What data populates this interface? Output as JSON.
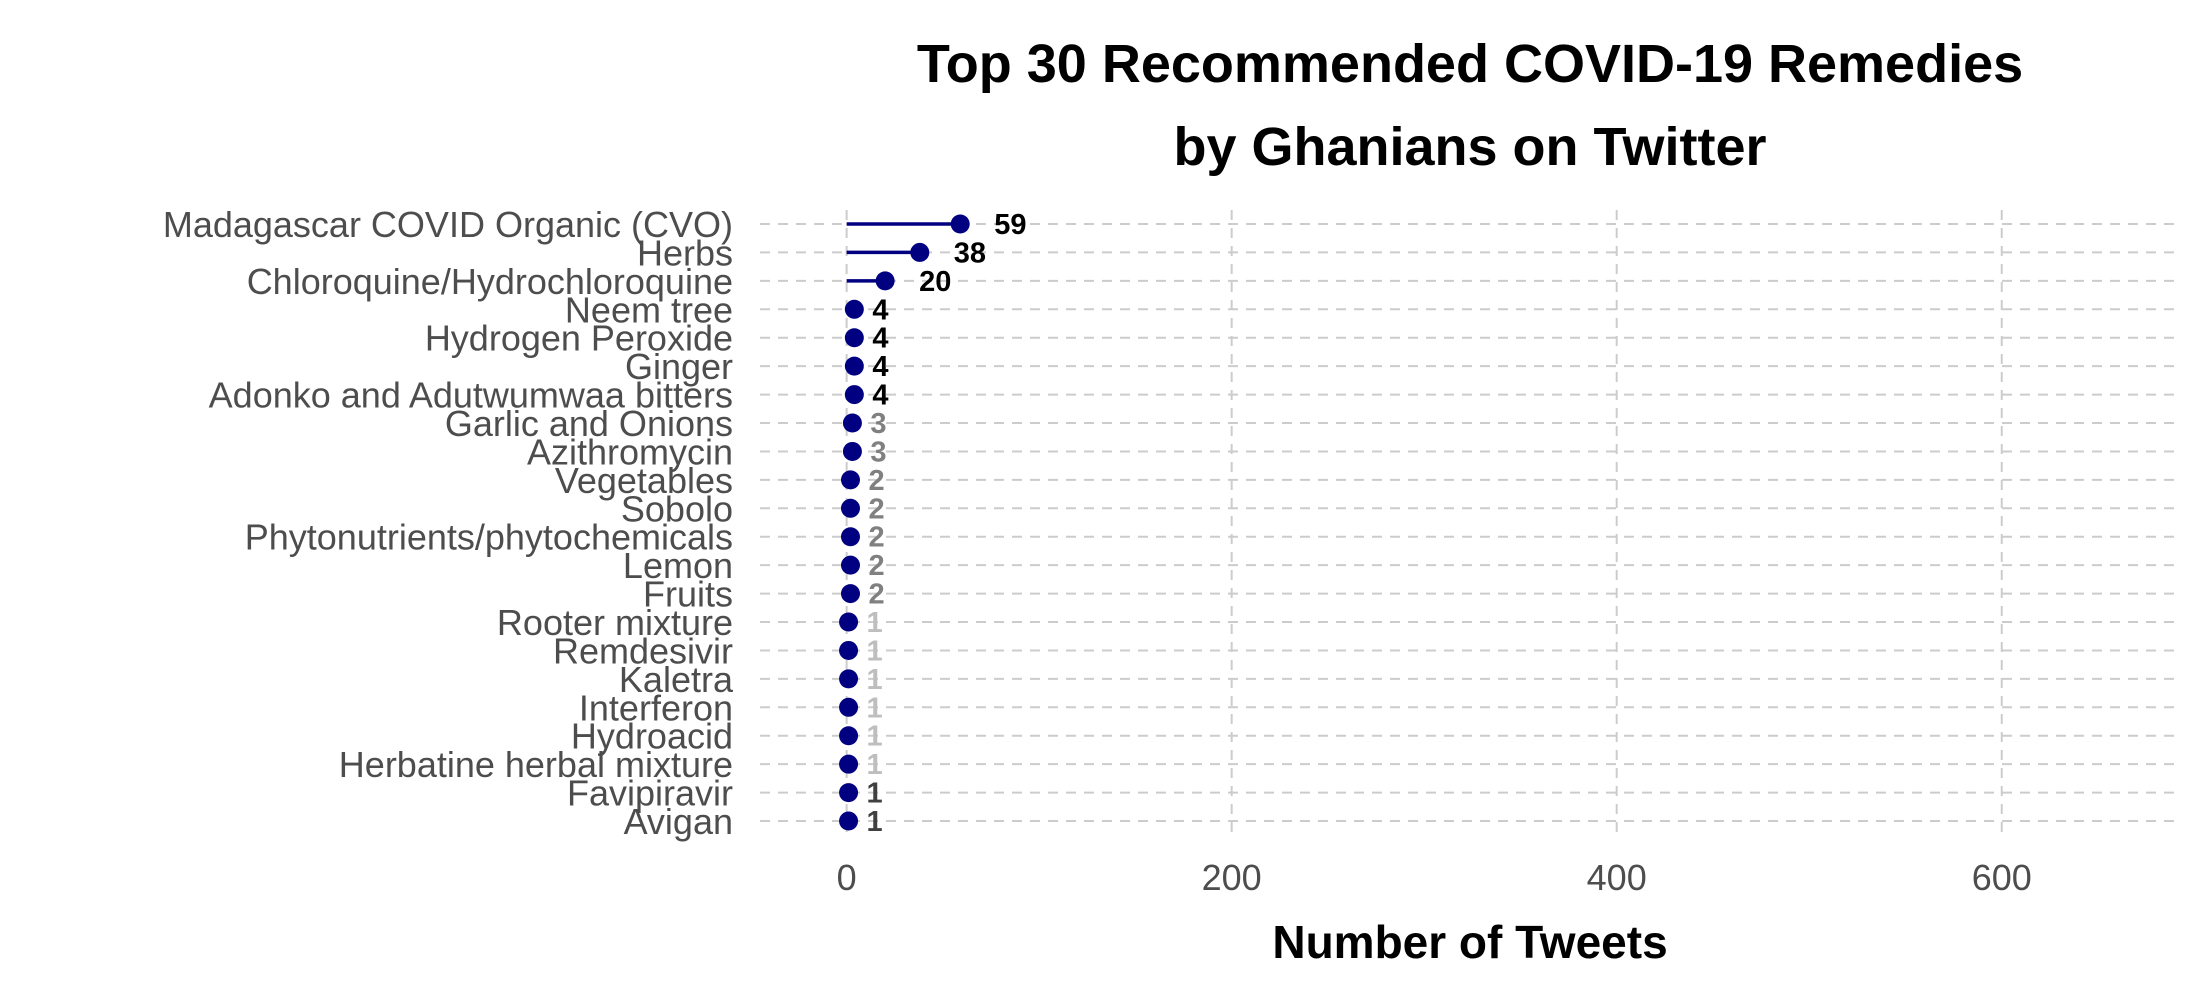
{
  "chart_data": {
    "type": "lollipop",
    "title": [
      "Top 30 Recommended COVID-19 Remedies",
      "by Ghanians on Twitter"
    ],
    "xlabel": "Number of Tweets",
    "ylabel": "",
    "xlim": [
      -45,
      690
    ],
    "xticks": [
      0,
      200,
      400,
      600
    ],
    "grid": true,
    "orientation": "horizontal",
    "categories": [
      "Madagascar COVID Organic (CVO)",
      "Herbs",
      "Chloroquine/Hydrochloroquine",
      "Neem tree",
      "Hydrogen Peroxide",
      "Ginger",
      "Adonko and Adutwumwaa bitters",
      "Garlic and Onions",
      "Azithromycin",
      "Vegetables",
      "Sobolo",
      "Phytonutrients/phytochemicals",
      "Lemon",
      "Fruits",
      "Rooter mixture",
      "Remdesivir",
      "Kaletra",
      "Interferon",
      "Hydroacid",
      "Herbatine herbal mixture",
      "Favipiravir",
      "Avigan"
    ],
    "values": [
      59,
      38,
      20,
      4,
      4,
      4,
      4,
      3,
      3,
      2,
      2,
      2,
      2,
      2,
      1,
      1,
      1,
      1,
      1,
      1,
      1,
      1
    ],
    "label_colors": [
      "#000000",
      "#000000",
      "#000000",
      "#000000",
      "#000000",
      "#000000",
      "#000000",
      "#808080",
      "#808080",
      "#808080",
      "#808080",
      "#808080",
      "#808080",
      "#808080",
      "#bebebe",
      "#bebebe",
      "#bebebe",
      "#bebebe",
      "#bebebe",
      "#bebebe",
      "#404040",
      "#404040"
    ],
    "colors": {
      "point": "#000080",
      "segment": "#000080",
      "grid": "#cccccc",
      "text": "#4d4d4d"
    }
  }
}
